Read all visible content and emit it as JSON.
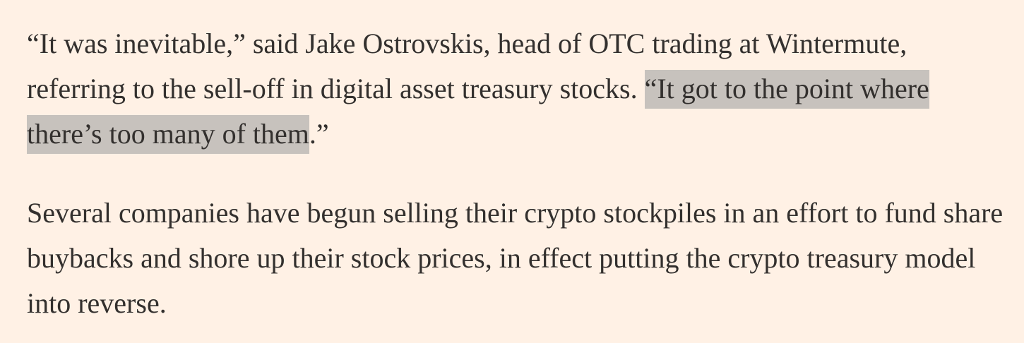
{
  "article": {
    "paragraph1": {
      "before_highlight": "“It was inevitable,” said Jake Ostrovskis, head of OTC trading at Wintermute, referring to the sell-off in digital asset treasury stocks. ",
      "highlight": "“It got to the point where there’s too many of them",
      "after_highlight": ".”"
    },
    "paragraph2": {
      "text": "Several companies have begun selling their crypto stockpiles in an effort to fund share buybacks and shore up their stock prices, in effect putting the crypto treasury model into reverse."
    }
  },
  "colors": {
    "background": "#fff1e5",
    "text": "#33302e",
    "highlight": "#c7c2bd"
  }
}
